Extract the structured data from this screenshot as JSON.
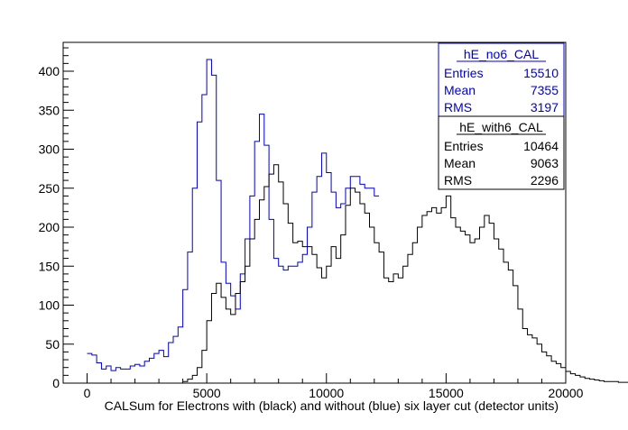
{
  "chart_data": {
    "type": "histogram",
    "title": "",
    "xlabel": "CALSum for Electrons with (black) and without (blue) six layer cut (detector units)",
    "ylabel": "",
    "xlim": [
      -1000,
      20000
    ],
    "ylim": [
      0,
      437
    ],
    "x_ticks": [
      0,
      5000,
      10000,
      15000,
      20000
    ],
    "y_ticks": [
      0,
      50,
      100,
      150,
      200,
      250,
      300,
      350,
      400
    ],
    "bin_width": 200,
    "grid": false,
    "series": [
      {
        "name": "hE_no6_CAL",
        "color": "#0000cc",
        "x_start": 0,
        "values": [
          38,
          36,
          26,
          18,
          22,
          16,
          20,
          18,
          18,
          22,
          24,
          22,
          28,
          32,
          38,
          42,
          34,
          52,
          60,
          72,
          120,
          168,
          250,
          335,
          370,
          415,
          395,
          260,
          155,
          128,
          112,
          95,
          140,
          185,
          240,
          310,
          345,
          305,
          210,
          160,
          150,
          145,
          150,
          150,
          155,
          165,
          200,
          245,
          265,
          295,
          270,
          245,
          225,
          230,
          250,
          265,
          265,
          255,
          250,
          250,
          240
        ]
      },
      {
        "name": "hE_with6_CAL",
        "color": "#000000",
        "x_start": 4000,
        "values": [
          2,
          5,
          10,
          20,
          42,
          80,
          115,
          128,
          110,
          95,
          88,
          115,
          130,
          150,
          185,
          210,
          235,
          252,
          268,
          280,
          258,
          230,
          205,
          180,
          182,
          175,
          175,
          165,
          148,
          135,
          150,
          175,
          160,
          190,
          228,
          250,
          245,
          230,
          218,
          200,
          180,
          168,
          135,
          130,
          140,
          135,
          150,
          165,
          180,
          200,
          215,
          220,
          225,
          218,
          225,
          240,
          212,
          200,
          195,
          190,
          180,
          185,
          200,
          215,
          205,
          185,
          172,
          155,
          145,
          125,
          95,
          70,
          62,
          58,
          50,
          40,
          35,
          28,
          25,
          20,
          15,
          12,
          10,
          8,
          6,
          5,
          4,
          3,
          2,
          2,
          2,
          1,
          1,
          1,
          1,
          1,
          0,
          0,
          0,
          1,
          0,
          1,
          0,
          0,
          0,
          1,
          0,
          0,
          0,
          0,
          0,
          0,
          0,
          1,
          0,
          0,
          0,
          0,
          0,
          0,
          0,
          1
        ]
      }
    ],
    "stats_boxes": [
      {
        "title": "hE_no6_CAL",
        "color": "#0000cc",
        "rows": [
          {
            "label": "Entries",
            "value": "15510"
          },
          {
            "label": "Mean",
            "value": "7355"
          },
          {
            "label": "RMS",
            "value": "3197"
          }
        ]
      },
      {
        "title": "hE_with6_CAL",
        "color": "#000000",
        "rows": [
          {
            "label": "Entries",
            "value": "10464"
          },
          {
            "label": "Mean",
            "value": "9063"
          },
          {
            "label": "RMS",
            "value": "2296"
          }
        ]
      }
    ]
  }
}
